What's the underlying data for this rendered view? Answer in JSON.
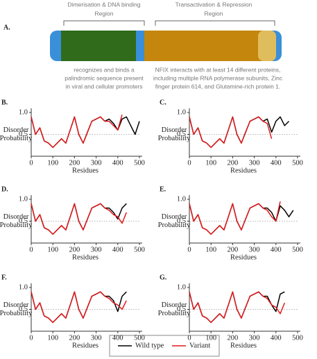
{
  "diagram": {
    "label": "A.",
    "regions": [
      {
        "title": [
          "Dimerisation & DNA binding",
          "Region"
        ],
        "description": [
          "recognizes and binds a",
          "palindromic sequence present",
          "in viral and cellular promoters"
        ]
      },
      {
        "title": [
          "Transactivation & Repression",
          "Region"
        ],
        "description": [
          "NFIX interacts with at least 14 different proteins,",
          "including multiple RNA polymerase subunits, Zinc",
          "finger protein 614, and Glutamine-rich protein 1."
        ]
      }
    ]
  },
  "legend": [
    {
      "name": "Wild type",
      "color": "#000000"
    },
    {
      "name": "Variant",
      "color": "#e41a1c"
    }
  ],
  "chart_data": [
    {
      "type": "line",
      "label": "B.",
      "xlabel": "Residues",
      "ylabel": [
        "Disorder",
        "Probability"
      ],
      "xlim": [
        0,
        500
      ],
      "xticks": [
        0,
        100,
        200,
        300,
        400,
        500
      ],
      "ylim": [
        0,
        1
      ],
      "yticks": [
        0.5,
        {
          "value": 1,
          "label": "1.0"
        }
      ],
      "hline": 0.5,
      "x": [
        0,
        20,
        40,
        60,
        80,
        100,
        120,
        140,
        160,
        180,
        200,
        220,
        240,
        260,
        280,
        300,
        320,
        340,
        360,
        380,
        400,
        420,
        440,
        460,
        480,
        500
      ],
      "series": [
        {
          "color": "#000000",
          "values": [
            0.9,
            0.5,
            0.65,
            0.35,
            0.3,
            0.2,
            0.3,
            0.4,
            0.3,
            0.6,
            0.9,
            0.5,
            0.3,
            0.55,
            0.8,
            0.85,
            0.9,
            0.8,
            0.85,
            0.75,
            0.6,
            0.85,
            0.9,
            0.7,
            0.5,
            0.8
          ]
        },
        {
          "color": "#e41a1c",
          "values": [
            0.9,
            0.5,
            0.65,
            0.35,
            0.3,
            0.2,
            0.3,
            0.4,
            0.3,
            0.6,
            0.9,
            0.5,
            0.3,
            0.55,
            0.8,
            0.85,
            0.9,
            0.8,
            0.8,
            0.7,
            0.6,
            0.95,
            null,
            null,
            null,
            null
          ]
        }
      ]
    },
    {
      "type": "line",
      "label": "C.",
      "xlabel": "Residues",
      "ylabel": [
        "Disorder",
        "Probability"
      ],
      "xlim": [
        0,
        500
      ],
      "xticks": [
        0,
        100,
        200,
        300,
        400,
        500
      ],
      "ylim": [
        0,
        1
      ],
      "yticks": [
        0.5,
        {
          "value": 1,
          "label": "1.0"
        }
      ],
      "hline": 0.5,
      "x": [
        0,
        20,
        40,
        60,
        80,
        100,
        120,
        140,
        160,
        180,
        200,
        220,
        240,
        260,
        280,
        300,
        320,
        340,
        360,
        380,
        400,
        420,
        440,
        460,
        480,
        500
      ],
      "series": [
        {
          "color": "#000000",
          "values": [
            0.9,
            0.5,
            0.65,
            0.35,
            0.3,
            0.2,
            0.3,
            0.4,
            0.3,
            0.6,
            0.9,
            0.5,
            0.3,
            0.55,
            0.8,
            0.85,
            0.9,
            0.8,
            0.85,
            0.55,
            0.8,
            0.9,
            0.7,
            0.8,
            null,
            null
          ]
        },
        {
          "color": "#e41a1c",
          "values": [
            0.9,
            0.5,
            0.65,
            0.35,
            0.3,
            0.2,
            0.3,
            0.4,
            0.3,
            0.6,
            0.9,
            0.5,
            0.3,
            0.55,
            0.8,
            0.85,
            0.9,
            0.8,
            0.75,
            0.4,
            null,
            null,
            null,
            null,
            null,
            null
          ]
        }
      ]
    },
    {
      "type": "line",
      "label": "D.",
      "xlabel": "Residues",
      "ylabel": [
        "Disorder",
        "Probability"
      ],
      "xlim": [
        0,
        500
      ],
      "xticks": [
        0,
        100,
        200,
        300,
        400,
        500
      ],
      "ylim": [
        0,
        1
      ],
      "yticks": [
        0.5,
        {
          "value": 1,
          "label": "1.0"
        }
      ],
      "hline": 0.5,
      "x": [
        0,
        20,
        40,
        60,
        80,
        100,
        120,
        140,
        160,
        180,
        200,
        220,
        240,
        260,
        280,
        300,
        320,
        340,
        360,
        380,
        400,
        420,
        440,
        460,
        480,
        500
      ],
      "series": [
        {
          "color": "#000000",
          "values": [
            0.9,
            0.5,
            0.65,
            0.35,
            0.3,
            0.2,
            0.3,
            0.4,
            0.3,
            0.6,
            0.9,
            0.5,
            0.3,
            0.55,
            0.8,
            0.85,
            0.9,
            0.8,
            0.8,
            0.7,
            0.55,
            0.8,
            0.9,
            null,
            null,
            null
          ]
        },
        {
          "color": "#e41a1c",
          "values": [
            0.9,
            0.5,
            0.65,
            0.35,
            0.3,
            0.2,
            0.3,
            0.4,
            0.3,
            0.6,
            0.9,
            0.5,
            0.3,
            0.55,
            0.8,
            0.85,
            0.9,
            0.8,
            0.75,
            0.65,
            0.6,
            0.45,
            0.7,
            null,
            null,
            null
          ]
        }
      ]
    },
    {
      "type": "line",
      "label": "E.",
      "xlabel": "Residues",
      "ylabel": [
        "Disorder",
        "Probability"
      ],
      "xlim": [
        0,
        500
      ],
      "xticks": [
        0,
        100,
        200,
        300,
        400,
        500
      ],
      "ylim": [
        0,
        1
      ],
      "yticks": [
        0.5,
        {
          "value": 1,
          "label": "1.0"
        }
      ],
      "hline": 0.5,
      "x": [
        0,
        20,
        40,
        60,
        80,
        100,
        120,
        140,
        160,
        180,
        200,
        220,
        240,
        260,
        280,
        300,
        320,
        340,
        360,
        380,
        400,
        420,
        440,
        460,
        480,
        500
      ],
      "series": [
        {
          "color": "#000000",
          "values": [
            0.9,
            0.5,
            0.65,
            0.35,
            0.3,
            0.2,
            0.3,
            0.4,
            0.3,
            0.6,
            0.9,
            0.5,
            0.3,
            0.55,
            0.8,
            0.85,
            0.9,
            0.8,
            0.8,
            0.7,
            0.5,
            0.85,
            0.75,
            0.6,
            0.75,
            null
          ]
        },
        {
          "color": "#e41a1c",
          "values": [
            0.9,
            0.5,
            0.65,
            0.35,
            0.3,
            0.2,
            0.3,
            0.4,
            0.3,
            0.6,
            0.9,
            0.5,
            0.3,
            0.55,
            0.8,
            0.85,
            0.9,
            0.8,
            0.75,
            0.6,
            0.5,
            0.95,
            null,
            null,
            null,
            null
          ]
        }
      ]
    },
    {
      "type": "line",
      "label": "F.",
      "xlabel": "Residues",
      "ylabel": [
        "Disorder",
        "Probability"
      ],
      "xlim": [
        0,
        500
      ],
      "xticks": [
        0,
        100,
        200,
        300,
        400,
        500
      ],
      "ylim": [
        0,
        1
      ],
      "yticks": [
        0.5,
        {
          "value": 1,
          "label": "1.0"
        }
      ],
      "hline": 0.5,
      "x": [
        0,
        20,
        40,
        60,
        80,
        100,
        120,
        140,
        160,
        180,
        200,
        220,
        240,
        260,
        280,
        300,
        320,
        340,
        360,
        380,
        400,
        420,
        440,
        460,
        480,
        500
      ],
      "series": [
        {
          "color": "#000000",
          "values": [
            0.9,
            0.5,
            0.65,
            0.35,
            0.3,
            0.2,
            0.3,
            0.4,
            0.3,
            0.6,
            0.9,
            0.5,
            0.3,
            0.55,
            0.8,
            0.85,
            0.9,
            0.8,
            0.8,
            0.7,
            0.45,
            0.8,
            0.9,
            null,
            null,
            null
          ]
        },
        {
          "color": "#e41a1c",
          "values": [
            0.9,
            0.5,
            0.65,
            0.35,
            0.3,
            0.2,
            0.3,
            0.4,
            0.3,
            0.6,
            0.9,
            0.5,
            0.3,
            0.55,
            0.8,
            0.85,
            0.9,
            0.8,
            0.75,
            0.65,
            0.6,
            0.5,
            0.7,
            null,
            null,
            null
          ]
        }
      ]
    },
    {
      "type": "line",
      "label": "G.",
      "xlabel": "Residues",
      "ylabel": [
        "Disorder",
        "Probability"
      ],
      "xlim": [
        0,
        500
      ],
      "xticks": [
        0,
        100,
        200,
        300,
        400,
        500
      ],
      "ylim": [
        0,
        1
      ],
      "yticks": [
        0.5,
        {
          "value": 1,
          "label": "1.0"
        }
      ],
      "hline": 0.5,
      "x": [
        0,
        20,
        40,
        60,
        80,
        100,
        120,
        140,
        160,
        180,
        200,
        220,
        240,
        260,
        280,
        300,
        320,
        340,
        360,
        380,
        400,
        420,
        440,
        460,
        480,
        500
      ],
      "series": [
        {
          "color": "#000000",
          "values": [
            0.9,
            0.5,
            0.65,
            0.35,
            0.3,
            0.2,
            0.3,
            0.4,
            0.3,
            0.6,
            0.9,
            0.5,
            0.3,
            0.55,
            0.8,
            0.85,
            0.9,
            0.8,
            0.8,
            0.6,
            0.45,
            0.85,
            0.9,
            null,
            null,
            null
          ]
        },
        {
          "color": "#e41a1c",
          "values": [
            0.9,
            0.5,
            0.65,
            0.35,
            0.3,
            0.2,
            0.3,
            0.4,
            0.3,
            0.6,
            0.9,
            0.5,
            0.3,
            0.55,
            0.8,
            0.85,
            0.9,
            0.8,
            0.75,
            0.6,
            0.55,
            0.4,
            0.65,
            null,
            null,
            null
          ]
        }
      ]
    }
  ]
}
